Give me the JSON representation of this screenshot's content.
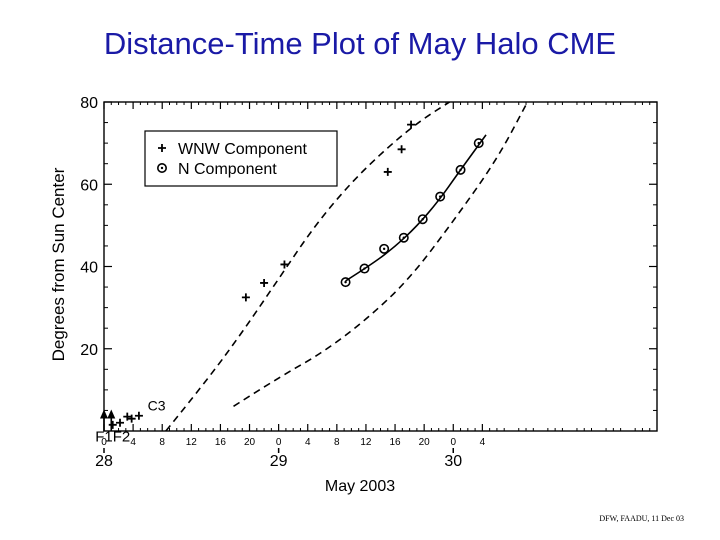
{
  "title": "Distance-Time Plot of May Halo CME",
  "footer": "DFW, FAADU, 11 Dec 03",
  "chart_data": {
    "type": "scatter",
    "title": "Distance-Time Plot of May Halo CME",
    "xlabel": "May 2003",
    "ylabel": "Degrees from Sun Center",
    "x_unit": "hours since 00:00 May 28, 2003",
    "xlim": [
      0,
      76
    ],
    "ylim": [
      0,
      80
    ],
    "x_ticks": [
      {
        "value": 0,
        "label": "0"
      },
      {
        "value": 4,
        "label": "4"
      },
      {
        "value": 8,
        "label": "8"
      },
      {
        "value": 12,
        "label": "12"
      },
      {
        "value": 16,
        "label": "16"
      },
      {
        "value": 20,
        "label": "20"
      },
      {
        "value": 24,
        "label": "0"
      },
      {
        "value": 28,
        "label": "4"
      },
      {
        "value": 32,
        "label": "8"
      },
      {
        "value": 36,
        "label": "12"
      },
      {
        "value": 40,
        "label": "16"
      },
      {
        "value": 44,
        "label": "20"
      },
      {
        "value": 48,
        "label": "0"
      },
      {
        "value": 52,
        "label": "4"
      }
    ],
    "day_labels": [
      {
        "value": 0,
        "label": "28"
      },
      {
        "value": 24,
        "label": "29"
      },
      {
        "value": 48,
        "label": "30"
      }
    ],
    "y_ticks": [
      20,
      40,
      60,
      80
    ],
    "grid": false,
    "legend_position": "top-left",
    "series": [
      {
        "name": "WNW Component",
        "marker": "plus",
        "points": [
          [
            1.2,
            1.5
          ],
          [
            2.2,
            2.0
          ],
          [
            3.2,
            3.5
          ],
          [
            3.8,
            3.0
          ],
          [
            4.8,
            3.7
          ],
          [
            19.5,
            32.5
          ],
          [
            22.0,
            36.0
          ],
          [
            24.8,
            40.5
          ],
          [
            39.0,
            63.0
          ],
          [
            40.9,
            68.5
          ],
          [
            42.2,
            74.5
          ]
        ]
      },
      {
        "name": "N Component",
        "marker": "circle-dot",
        "points": [
          [
            33.2,
            36.2
          ],
          [
            35.8,
            39.5
          ],
          [
            38.5,
            44.3
          ],
          [
            41.2,
            47.0
          ],
          [
            43.8,
            51.5
          ],
          [
            46.2,
            57.0
          ],
          [
            49.0,
            63.5
          ],
          [
            51.5,
            70.0
          ]
        ]
      }
    ],
    "curves": [
      {
        "style": "solid",
        "points": [
          [
            33.2,
            36.5
          ],
          [
            36.5,
            40.2
          ],
          [
            39.8,
            44.5
          ],
          [
            43.0,
            49.8
          ],
          [
            46.0,
            56.0
          ],
          [
            48.8,
            63.0
          ],
          [
            52.5,
            72.0
          ]
        ]
      },
      {
        "style": "dashed",
        "points": [
          [
            8.5,
            0
          ],
          [
            14.0,
            12.0
          ],
          [
            19.0,
            24.0
          ],
          [
            24.0,
            37.0
          ],
          [
            29.0,
            50.0
          ],
          [
            34.0,
            60.5
          ],
          [
            39.0,
            69.0
          ],
          [
            43.5,
            75.5
          ],
          [
            47.5,
            80.0
          ]
        ]
      },
      {
        "style": "dashed",
        "points": [
          [
            17.8,
            6.0
          ],
          [
            24.0,
            13.0
          ],
          [
            30.0,
            19.0
          ],
          [
            36.0,
            27.0
          ],
          [
            42.0,
            37.0
          ],
          [
            48.0,
            51.0
          ],
          [
            54.0,
            66.0
          ],
          [
            58.2,
            80.0
          ]
        ]
      }
    ],
    "annotations": [
      {
        "text": "C3",
        "x": 6.0,
        "y": 5.0
      },
      {
        "text": "F1",
        "x": 0.0,
        "y": -2.5
      },
      {
        "text": "F2",
        "x": 2.4,
        "y": -2.5
      }
    ],
    "arrows": [
      {
        "x": 0.0,
        "y": 4.5
      },
      {
        "x": 1.0,
        "y": 4.5
      }
    ]
  }
}
